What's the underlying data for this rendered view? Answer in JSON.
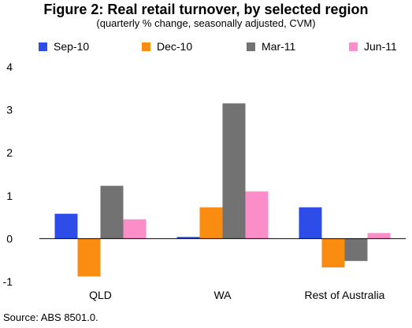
{
  "chart_data": {
    "type": "bar",
    "title": "Figure 2: Real retail turnover, by selected region",
    "subtitle": "(quarterly % change, seasonally adjusted, CVM)",
    "categories": [
      "QLD",
      "WA",
      "Rest of Australia"
    ],
    "series": [
      {
        "name": "Sep-10",
        "color": "#2e4de8",
        "values": [
          0.58,
          0.04,
          0.73
        ]
      },
      {
        "name": "Dec-10",
        "color": "#fb8c12",
        "values": [
          -0.88,
          0.73,
          -0.67
        ]
      },
      {
        "name": "Mar-11",
        "color": "#727272",
        "values": [
          1.23,
          3.15,
          -0.52
        ]
      },
      {
        "name": "Jun-11",
        "color": "#fb8ec8",
        "values": [
          0.45,
          1.1,
          0.13
        ]
      }
    ],
    "ylim": [
      -1,
      4
    ],
    "yticks": [
      -1,
      0,
      1,
      2,
      3,
      4
    ],
    "grid": false,
    "legend_position": "top"
  },
  "source": "Source: ABS 8501.0."
}
